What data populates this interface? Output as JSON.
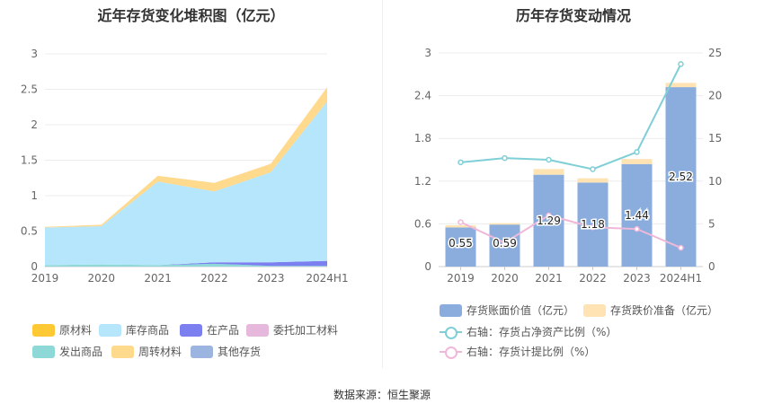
{
  "left_title": "近年存货变化堆积图（亿元）",
  "right_title": "历年存货变动情况",
  "source": "数据来源：恒生聚源",
  "colors": {
    "raw_materials": "#ffc935",
    "finished_goods": "#b5e6fb",
    "wip": "#7b7ff0",
    "outsourced": "#e6b8dc",
    "goods_shipped": "#8fd8d8",
    "turnover": "#ffd98c",
    "other": "#9bb5e0",
    "bar_value": "#8aaddd",
    "bar_reserve": "#ffe3b3",
    "line_ratio": "#7fcfd6",
    "line_provision": "#f0b8d8"
  },
  "chart_data": [
    {
      "type": "area",
      "stacked": true,
      "categories": [
        "2019",
        "2020",
        "2021",
        "2022",
        "2023",
        "2024H1"
      ],
      "ylim": [
        0,
        3
      ],
      "yticks": [
        "0",
        "0.5",
        "1",
        "1.5",
        "2",
        "2.5",
        "3"
      ],
      "grid": true,
      "legend_position": "bottom",
      "series": [
        {
          "name": "原材料",
          "key": "raw_materials",
          "values": [
            0,
            0,
            0,
            0,
            0,
            0
          ]
        },
        {
          "name": "库存商品",
          "key": "finished_goods",
          "values": [
            0.53,
            0.54,
            1.18,
            1.0,
            1.27,
            2.25
          ]
        },
        {
          "name": "在产品",
          "key": "wip",
          "values": [
            0,
            0,
            0,
            0.02,
            0.05,
            0.07
          ]
        },
        {
          "name": "委托加工材料",
          "key": "outsourced",
          "values": [
            0,
            0,
            0,
            0,
            0,
            0
          ]
        },
        {
          "name": "发出商品",
          "key": "goods_shipped",
          "values": [
            0.02,
            0.03,
            0.02,
            0.04,
            0.01,
            0.01
          ]
        },
        {
          "name": "周转材料",
          "key": "turnover",
          "values": [
            0.01,
            0.02,
            0.08,
            0.12,
            0.12,
            0.2
          ]
        },
        {
          "name": "其他存货",
          "key": "other",
          "values": [
            0,
            0,
            0,
            0,
            0,
            0
          ]
        }
      ]
    },
    {
      "type": "bar",
      "categories": [
        "2019",
        "2020",
        "2021",
        "2022",
        "2023",
        "2024H1"
      ],
      "ylim": [
        0,
        3
      ],
      "yticks": [
        "0",
        "0.6",
        "1.2",
        "1.8",
        "2.4",
        "3"
      ],
      "y2lim": [
        0,
        25
      ],
      "y2ticks": [
        "0",
        "5",
        "10",
        "15",
        "20",
        "25"
      ],
      "grid": true,
      "legend_position": "bottom",
      "series": [
        {
          "name": "存货账面价值（亿元）",
          "key": "bar_value",
          "type": "bar",
          "values": [
            0.55,
            0.59,
            1.29,
            1.18,
            1.44,
            2.52
          ],
          "labels": [
            "0.55",
            "0.59",
            "1.29",
            "1.18",
            "1.44",
            "2.52"
          ]
        },
        {
          "name": "存货跌价准备（亿元）",
          "key": "bar_reserve",
          "type": "bar",
          "values": [
            0.03,
            0.02,
            0.08,
            0.06,
            0.07,
            0.06
          ]
        },
        {
          "name": "右轴：存货占净资产比例（%）",
          "key": "line_ratio",
          "type": "line",
          "axis": "right",
          "values": [
            12.2,
            12.7,
            12.5,
            11.4,
            13.4,
            23.7
          ]
        },
        {
          "name": "右轴：存货计提比例（%）",
          "key": "line_provision",
          "type": "line",
          "axis": "right",
          "values": [
            5.2,
            2.8,
            6.0,
            4.6,
            4.4,
            2.2
          ]
        }
      ]
    }
  ]
}
